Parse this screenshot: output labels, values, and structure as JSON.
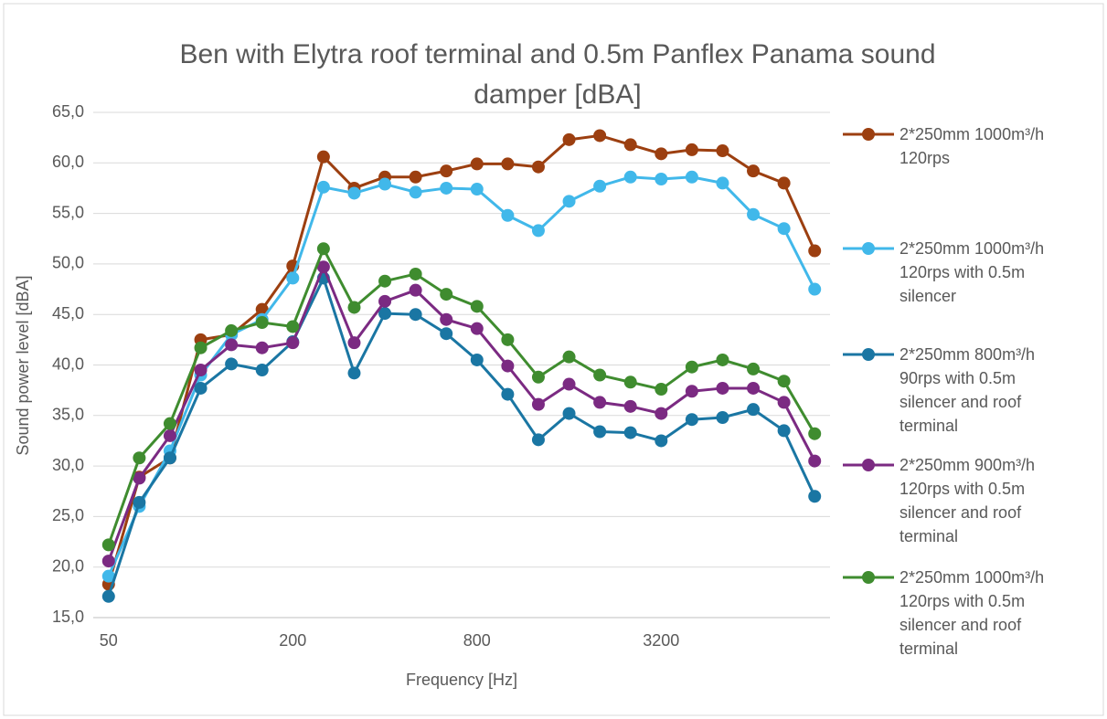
{
  "chart_data": {
    "type": "line",
    "title": "Ben with Elytra roof terminal and 0.5m Panflex Panama sound damper [dBA]",
    "x_label": "Frequency [Hz]",
    "y_label": "Sound power level [dBA]",
    "categories": [
      "50",
      null,
      null,
      null,
      null,
      null,
      "200",
      null,
      null,
      null,
      null,
      null,
      "800",
      null,
      null,
      null,
      null,
      null,
      "3200",
      null,
      null,
      null,
      null,
      null
    ],
    "ylim": [
      15,
      65
    ],
    "yticks": [
      {
        "value": 15,
        "label": "15,0"
      },
      {
        "value": 20,
        "label": "20,0"
      },
      {
        "value": 25,
        "label": "25,0"
      },
      {
        "value": 30,
        "label": "30,0"
      },
      {
        "value": 35,
        "label": "35,0"
      },
      {
        "value": 40,
        "label": "40,0"
      },
      {
        "value": 45,
        "label": "45,0"
      },
      {
        "value": 50,
        "label": "50,0"
      },
      {
        "value": 55,
        "label": "55,0"
      },
      {
        "value": 60,
        "label": "60,0"
      },
      {
        "value": 65,
        "label": "65,0"
      }
    ],
    "grid": true,
    "legend": "right",
    "series": [
      {
        "name": "2*250mm 1000m³/h 120rps",
        "color": "#9c3f10",
        "values": [
          18.3,
          28.9,
          30.8,
          42.5,
          43.0,
          45.5,
          49.8,
          60.6,
          57.5,
          58.6,
          58.6,
          59.2,
          59.9,
          59.9,
          59.6,
          62.3,
          62.7,
          61.8,
          60.9,
          61.3,
          61.2,
          59.2,
          58.0,
          51.3
        ]
      },
      {
        "name": "2*250mm 1000m³/h 120rps with 0.5m silencer",
        "color": "#41b8ea",
        "values": [
          19.1,
          26.0,
          31.5,
          39.0,
          43.0,
          44.5,
          48.6,
          57.6,
          57.0,
          57.9,
          57.1,
          57.5,
          57.4,
          54.8,
          53.3,
          56.2,
          57.7,
          58.6,
          58.4,
          58.6,
          58.0,
          54.9,
          53.5,
          47.5
        ]
      },
      {
        "name": "2*250mm 800m³/h 90rps with 0.5m silencer and roof terminal",
        "color": "#1a76a3",
        "values": [
          17.1,
          26.4,
          30.8,
          37.7,
          40.1,
          39.5,
          42.3,
          48.6,
          39.2,
          45.1,
          45.0,
          43.1,
          40.5,
          37.1,
          32.6,
          35.2,
          33.4,
          33.3,
          32.5,
          34.6,
          34.8,
          35.6,
          33.5,
          27.0
        ]
      },
      {
        "name": "2*250mm 900m³/h 120rps with 0.5m silencer and roof terminal",
        "color": "#7b2a82",
        "values": [
          20.6,
          28.8,
          33.0,
          39.5,
          42.0,
          41.7,
          42.2,
          49.7,
          42.2,
          46.3,
          47.4,
          44.5,
          43.6,
          39.9,
          36.1,
          38.1,
          36.3,
          35.9,
          35.2,
          37.4,
          37.7,
          37.7,
          36.3,
          30.5
        ]
      },
      {
        "name": "2*250mm 1000m³/h 120rps with 0.5m silencer and roof terminal",
        "color": "#3f8c2f",
        "values": [
          22.2,
          30.8,
          34.2,
          41.7,
          43.4,
          44.2,
          43.8,
          51.5,
          45.7,
          48.3,
          49.0,
          47.0,
          45.8,
          42.5,
          38.8,
          40.8,
          39.0,
          38.3,
          37.6,
          39.8,
          40.5,
          39.6,
          38.4,
          33.2
        ]
      }
    ]
  }
}
